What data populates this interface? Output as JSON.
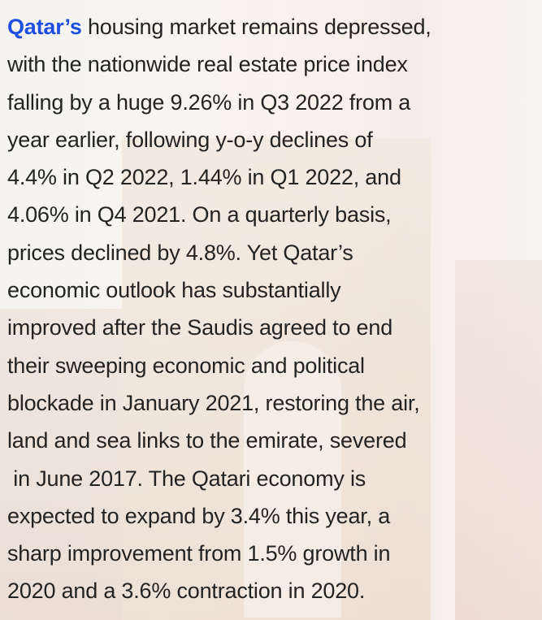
{
  "paragraph": {
    "link": "Qatar’s",
    "lines": [
      " housing market remains depressed,",
      "with the nationwide real estate price index",
      "falling by a huge 9.26% in Q3 2022 from a",
      "year earlier, following y-o-y declines of",
      "4.4% in Q2 2022, 1.44% in Q1 2022, and",
      "4.06% in Q4 2021. On a quarterly basis,",
      "prices declined by 4.8%. Yet Qatar’s",
      "economic outlook has substantially",
      "improved after the Saudis agreed to end",
      "their sweeping economic and political",
      "blockade in January 2021, restoring the air,",
      "land and sea links to the emirate, severed",
      " in June 2017. The Qatari economy is",
      "expected to expand by 3.4% this year, a",
      "sharp improvement from 1.5% growth in",
      "2020 and a 3.6% contraction in 2020."
    ]
  }
}
